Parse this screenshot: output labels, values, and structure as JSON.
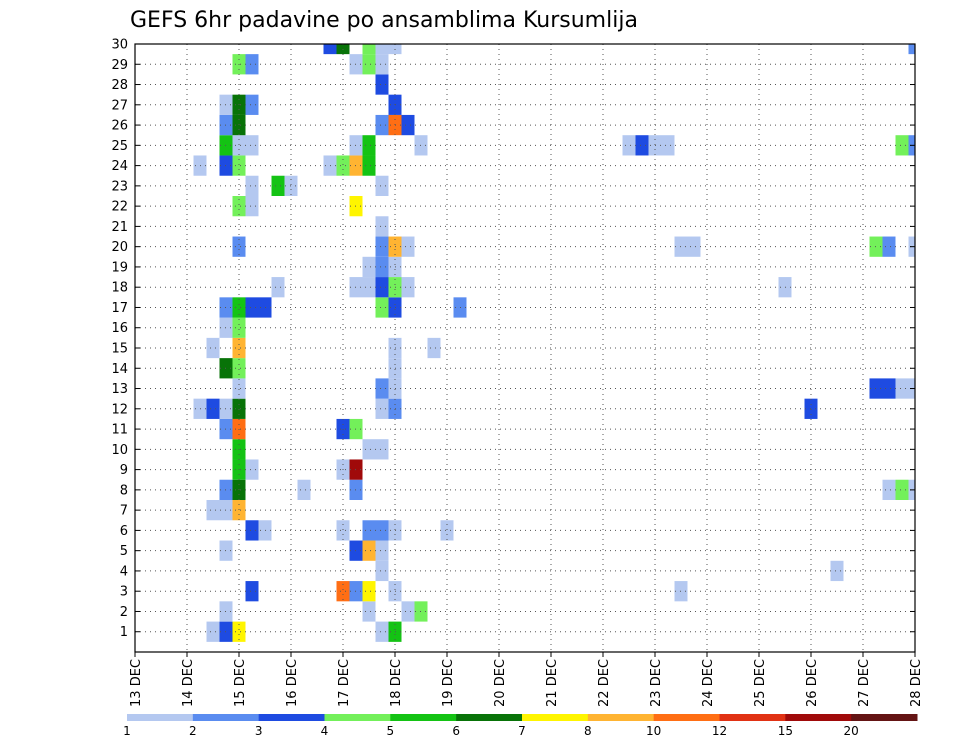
{
  "chart_data": {
    "type": "heatmap",
    "title": "GEFS 6hr padavine po ansamblima Kursumlija",
    "xlabel": "",
    "ylabel": "",
    "x_range_days": [
      13,
      28
    ],
    "x_tick_labels": [
      "13 DEC",
      "14 DEC",
      "15 DEC",
      "16 DEC",
      "17 DEC",
      "18 DEC",
      "19 DEC",
      "20 DEC",
      "21 DEC",
      "22 DEC",
      "23 DEC",
      "24 DEC",
      "25 DEC",
      "26 DEC",
      "27 DEC",
      "28 DEC"
    ],
    "y_range": [
      0,
      30
    ],
    "y_tick_labels": [
      "1",
      "2",
      "3",
      "4",
      "5",
      "6",
      "7",
      "8",
      "9",
      "10",
      "11",
      "12",
      "13",
      "14",
      "15",
      "16",
      "17",
      "18",
      "19",
      "20",
      "21",
      "22",
      "23",
      "24",
      "25",
      "26",
      "27",
      "28",
      "29",
      "30"
    ],
    "step_hours": 6,
    "grid": true,
    "legend": {
      "position": "bottom",
      "levels": [
        "1",
        "2",
        "3",
        "4",
        "5",
        "6",
        "7",
        "8",
        "10",
        "12",
        "15",
        "20"
      ],
      "colors": [
        "#b4c8f0",
        "#5a8cf0",
        "#1e4be1",
        "#73f05a",
        "#14c314",
        "#087308",
        "#fff500",
        "#ffb432",
        "#ff6e14",
        "#e13214",
        "#a00a0a",
        "#641414"
      ]
    },
    "cells": [
      {
        "m": 1,
        "d": 14.5,
        "v": 1
      },
      {
        "m": 1,
        "d": 14.75,
        "v": 3
      },
      {
        "m": 1,
        "d": 15.0,
        "v": 7
      },
      {
        "m": 1,
        "d": 17.75,
        "v": 1
      },
      {
        "m": 1,
        "d": 18.0,
        "v": 5
      },
      {
        "m": 2,
        "d": 14.75,
        "v": 1
      },
      {
        "m": 2,
        "d": 17.5,
        "v": 1
      },
      {
        "m": 2,
        "d": 18.25,
        "v": 1
      },
      {
        "m": 2,
        "d": 18.5,
        "v": 4
      },
      {
        "m": 3,
        "d": 15.25,
        "v": 3
      },
      {
        "m": 3,
        "d": 17.0,
        "v": 10
      },
      {
        "m": 3,
        "d": 17.25,
        "v": 2
      },
      {
        "m": 3,
        "d": 17.5,
        "v": 7
      },
      {
        "m": 3,
        "d": 18.0,
        "v": 1
      },
      {
        "m": 3,
        "d": 23.5,
        "v": 1
      },
      {
        "m": 4,
        "d": 17.75,
        "v": 1
      },
      {
        "m": 4,
        "d": 26.5,
        "v": 1
      },
      {
        "m": 5,
        "d": 14.75,
        "v": 1
      },
      {
        "m": 5,
        "d": 17.25,
        "v": 3
      },
      {
        "m": 5,
        "d": 17.5,
        "v": 8
      },
      {
        "m": 5,
        "d": 17.75,
        "v": 1
      },
      {
        "m": 6,
        "d": 15.25,
        "v": 3
      },
      {
        "m": 6,
        "d": 15.5,
        "v": 1
      },
      {
        "m": 6,
        "d": 17.0,
        "v": 1
      },
      {
        "m": 6,
        "d": 17.5,
        "v": 2
      },
      {
        "m": 6,
        "d": 17.75,
        "v": 2
      },
      {
        "m": 6,
        "d": 18.0,
        "v": 1
      },
      {
        "m": 6,
        "d": 19.0,
        "v": 1
      },
      {
        "m": 7,
        "d": 14.5,
        "v": 1
      },
      {
        "m": 7,
        "d": 14.75,
        "v": 1
      },
      {
        "m": 7,
        "d": 15.0,
        "v": 8
      },
      {
        "m": 8,
        "d": 14.75,
        "v": 2
      },
      {
        "m": 8,
        "d": 15.0,
        "v": 6
      },
      {
        "m": 8,
        "d": 16.25,
        "v": 1
      },
      {
        "m": 8,
        "d": 17.25,
        "v": 2
      },
      {
        "m": 8,
        "d": 27.5,
        "v": 1
      },
      {
        "m": 8,
        "d": 27.75,
        "v": 4
      },
      {
        "m": 8,
        "d": 28.0,
        "v": 1
      },
      {
        "m": 9,
        "d": 15.0,
        "v": 5
      },
      {
        "m": 9,
        "d": 15.25,
        "v": 1
      },
      {
        "m": 9,
        "d": 17.0,
        "v": 1
      },
      {
        "m": 9,
        "d": 17.25,
        "v": 15
      },
      {
        "m": 10,
        "d": 15.0,
        "v": 5
      },
      {
        "m": 10,
        "d": 17.5,
        "v": 1
      },
      {
        "m": 10,
        "d": 17.75,
        "v": 1
      },
      {
        "m": 11,
        "d": 14.75,
        "v": 2
      },
      {
        "m": 11,
        "d": 15.0,
        "v": 10
      },
      {
        "m": 11,
        "d": 17.0,
        "v": 3
      },
      {
        "m": 11,
        "d": 17.25,
        "v": 4
      },
      {
        "m": 12,
        "d": 14.25,
        "v": 1
      },
      {
        "m": 12,
        "d": 14.5,
        "v": 3
      },
      {
        "m": 12,
        "d": 14.75,
        "v": 1
      },
      {
        "m": 12,
        "d": 15.0,
        "v": 6
      },
      {
        "m": 12,
        "d": 17.75,
        "v": 1
      },
      {
        "m": 12,
        "d": 18.0,
        "v": 2
      },
      {
        "m": 12,
        "d": 26.0,
        "v": 3
      },
      {
        "m": 13,
        "d": 15.0,
        "v": 1
      },
      {
        "m": 13,
        "d": 17.75,
        "v": 2
      },
      {
        "m": 13,
        "d": 18.0,
        "v": 1
      },
      {
        "m": 13,
        "d": 27.25,
        "v": 3
      },
      {
        "m": 13,
        "d": 27.5,
        "v": 3
      },
      {
        "m": 13,
        "d": 27.75,
        "v": 1
      },
      {
        "m": 13,
        "d": 28.0,
        "v": 1
      },
      {
        "m": 14,
        "d": 14.75,
        "v": 6
      },
      {
        "m": 14,
        "d": 15.0,
        "v": 4
      },
      {
        "m": 14,
        "d": 18.0,
        "v": 1
      },
      {
        "m": 15,
        "d": 14.5,
        "v": 1
      },
      {
        "m": 15,
        "d": 15.0,
        "v": 8
      },
      {
        "m": 15,
        "d": 18.0,
        "v": 1
      },
      {
        "m": 15,
        "d": 18.75,
        "v": 1
      },
      {
        "m": 16,
        "d": 14.75,
        "v": 1
      },
      {
        "m": 16,
        "d": 15.0,
        "v": 4
      },
      {
        "m": 17,
        "d": 14.75,
        "v": 2
      },
      {
        "m": 17,
        "d": 15.0,
        "v": 5
      },
      {
        "m": 17,
        "d": 15.25,
        "v": 3
      },
      {
        "m": 17,
        "d": 15.5,
        "v": 3
      },
      {
        "m": 17,
        "d": 17.75,
        "v": 4
      },
      {
        "m": 17,
        "d": 18.0,
        "v": 3
      },
      {
        "m": 17,
        "d": 19.25,
        "v": 2
      },
      {
        "m": 18,
        "d": 15.75,
        "v": 1
      },
      {
        "m": 18,
        "d": 17.25,
        "v": 1
      },
      {
        "m": 18,
        "d": 17.5,
        "v": 1
      },
      {
        "m": 18,
        "d": 17.75,
        "v": 3
      },
      {
        "m": 18,
        "d": 18.0,
        "v": 4
      },
      {
        "m": 18,
        "d": 18.25,
        "v": 1
      },
      {
        "m": 18,
        "d": 25.5,
        "v": 1
      },
      {
        "m": 19,
        "d": 17.5,
        "v": 1
      },
      {
        "m": 19,
        "d": 17.75,
        "v": 2
      },
      {
        "m": 19,
        "d": 18.0,
        "v": 1
      },
      {
        "m": 20,
        "d": 15.0,
        "v": 2
      },
      {
        "m": 20,
        "d": 17.75,
        "v": 2
      },
      {
        "m": 20,
        "d": 18.0,
        "v": 8
      },
      {
        "m": 20,
        "d": 18.25,
        "v": 1
      },
      {
        "m": 20,
        "d": 23.5,
        "v": 1
      },
      {
        "m": 20,
        "d": 23.75,
        "v": 1
      },
      {
        "m": 20,
        "d": 27.25,
        "v": 4
      },
      {
        "m": 20,
        "d": 27.5,
        "v": 2
      },
      {
        "m": 20,
        "d": 28.0,
        "v": 1
      },
      {
        "m": 21,
        "d": 17.75,
        "v": 1
      },
      {
        "m": 22,
        "d": 15.0,
        "v": 4
      },
      {
        "m": 22,
        "d": 15.25,
        "v": 1
      },
      {
        "m": 22,
        "d": 17.25,
        "v": 7
      },
      {
        "m": 23,
        "d": 15.25,
        "v": 1
      },
      {
        "m": 23,
        "d": 15.75,
        "v": 5
      },
      {
        "m": 23,
        "d": 16.0,
        "v": 1
      },
      {
        "m": 23,
        "d": 17.75,
        "v": 1
      },
      {
        "m": 24,
        "d": 14.25,
        "v": 1
      },
      {
        "m": 24,
        "d": 14.75,
        "v": 3
      },
      {
        "m": 24,
        "d": 15.0,
        "v": 4
      },
      {
        "m": 24,
        "d": 16.75,
        "v": 1
      },
      {
        "m": 24,
        "d": 17.0,
        "v": 4
      },
      {
        "m": 24,
        "d": 17.25,
        "v": 8
      },
      {
        "m": 24,
        "d": 17.5,
        "v": 5
      },
      {
        "m": 25,
        "d": 14.75,
        "v": 5
      },
      {
        "m": 25,
        "d": 15.0,
        "v": 1
      },
      {
        "m": 25,
        "d": 15.25,
        "v": 1
      },
      {
        "m": 25,
        "d": 17.25,
        "v": 1
      },
      {
        "m": 25,
        "d": 17.5,
        "v": 5
      },
      {
        "m": 25,
        "d": 18.5,
        "v": 1
      },
      {
        "m": 25,
        "d": 22.5,
        "v": 1
      },
      {
        "m": 25,
        "d": 22.75,
        "v": 3
      },
      {
        "m": 25,
        "d": 23.0,
        "v": 1
      },
      {
        "m": 25,
        "d": 23.25,
        "v": 1
      },
      {
        "m": 25,
        "d": 27.75,
        "v": 4
      },
      {
        "m": 25,
        "d": 28.0,
        "v": 2
      },
      {
        "m": 26,
        "d": 14.75,
        "v": 2
      },
      {
        "m": 26,
        "d": 15.0,
        "v": 6
      },
      {
        "m": 26,
        "d": 17.75,
        "v": 2
      },
      {
        "m": 26,
        "d": 18.0,
        "v": 10
      },
      {
        "m": 26,
        "d": 18.25,
        "v": 3
      },
      {
        "m": 27,
        "d": 14.75,
        "v": 1
      },
      {
        "m": 27,
        "d": 15.0,
        "v": 6
      },
      {
        "m": 27,
        "d": 15.25,
        "v": 2
      },
      {
        "m": 27,
        "d": 18.0,
        "v": 3
      },
      {
        "m": 28,
        "d": 17.75,
        "v": 3
      },
      {
        "m": 29,
        "d": 15.0,
        "v": 4
      },
      {
        "m": 29,
        "d": 15.25,
        "v": 2
      },
      {
        "m": 29,
        "d": 17.25,
        "v": 1
      },
      {
        "m": 29,
        "d": 17.5,
        "v": 4
      },
      {
        "m": 29,
        "d": 17.75,
        "v": 1
      },
      {
        "m": 30,
        "d": 16.75,
        "v": 3
      },
      {
        "m": 30,
        "d": 17.0,
        "v": 6
      },
      {
        "m": 30,
        "d": 17.5,
        "v": 4
      },
      {
        "m": 30,
        "d": 17.75,
        "v": 1
      },
      {
        "m": 30,
        "d": 18.0,
        "v": 1
      },
      {
        "m": 30,
        "d": 28.0,
        "v": 2
      }
    ]
  }
}
